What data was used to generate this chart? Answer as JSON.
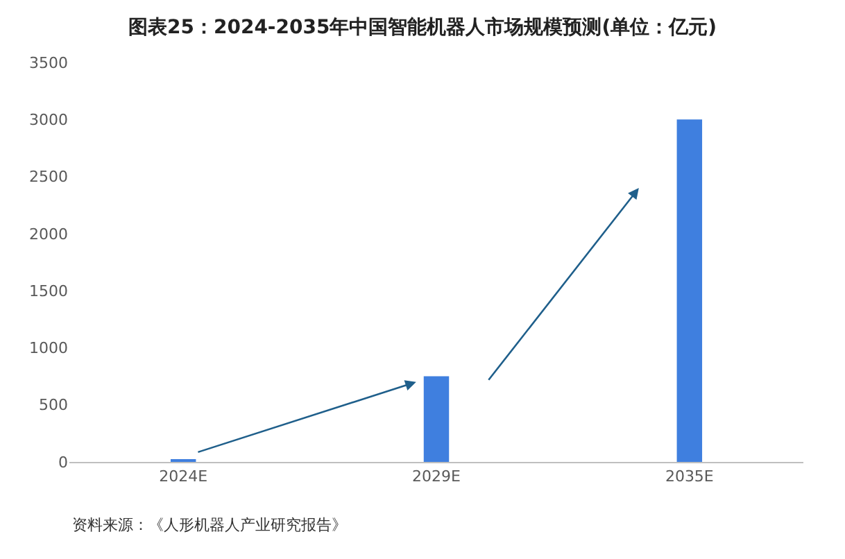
{
  "chart_data": {
    "type": "bar",
    "title": "图表25：2024-2035年中国智能机器人市场规模预测(单位：亿元)",
    "categories": [
      "2024E",
      "2029E",
      "2035E"
    ],
    "values": [
      20,
      750,
      3000
    ],
    "color": "#3f7fdf",
    "ylim": [
      0,
      3500
    ],
    "yticks": [
      0,
      500,
      1000,
      1500,
      2000,
      2500,
      3000,
      3500
    ],
    "grid": false,
    "annotations": [
      "资料来源：《人形机器人产业研究报告》"
    ]
  }
}
